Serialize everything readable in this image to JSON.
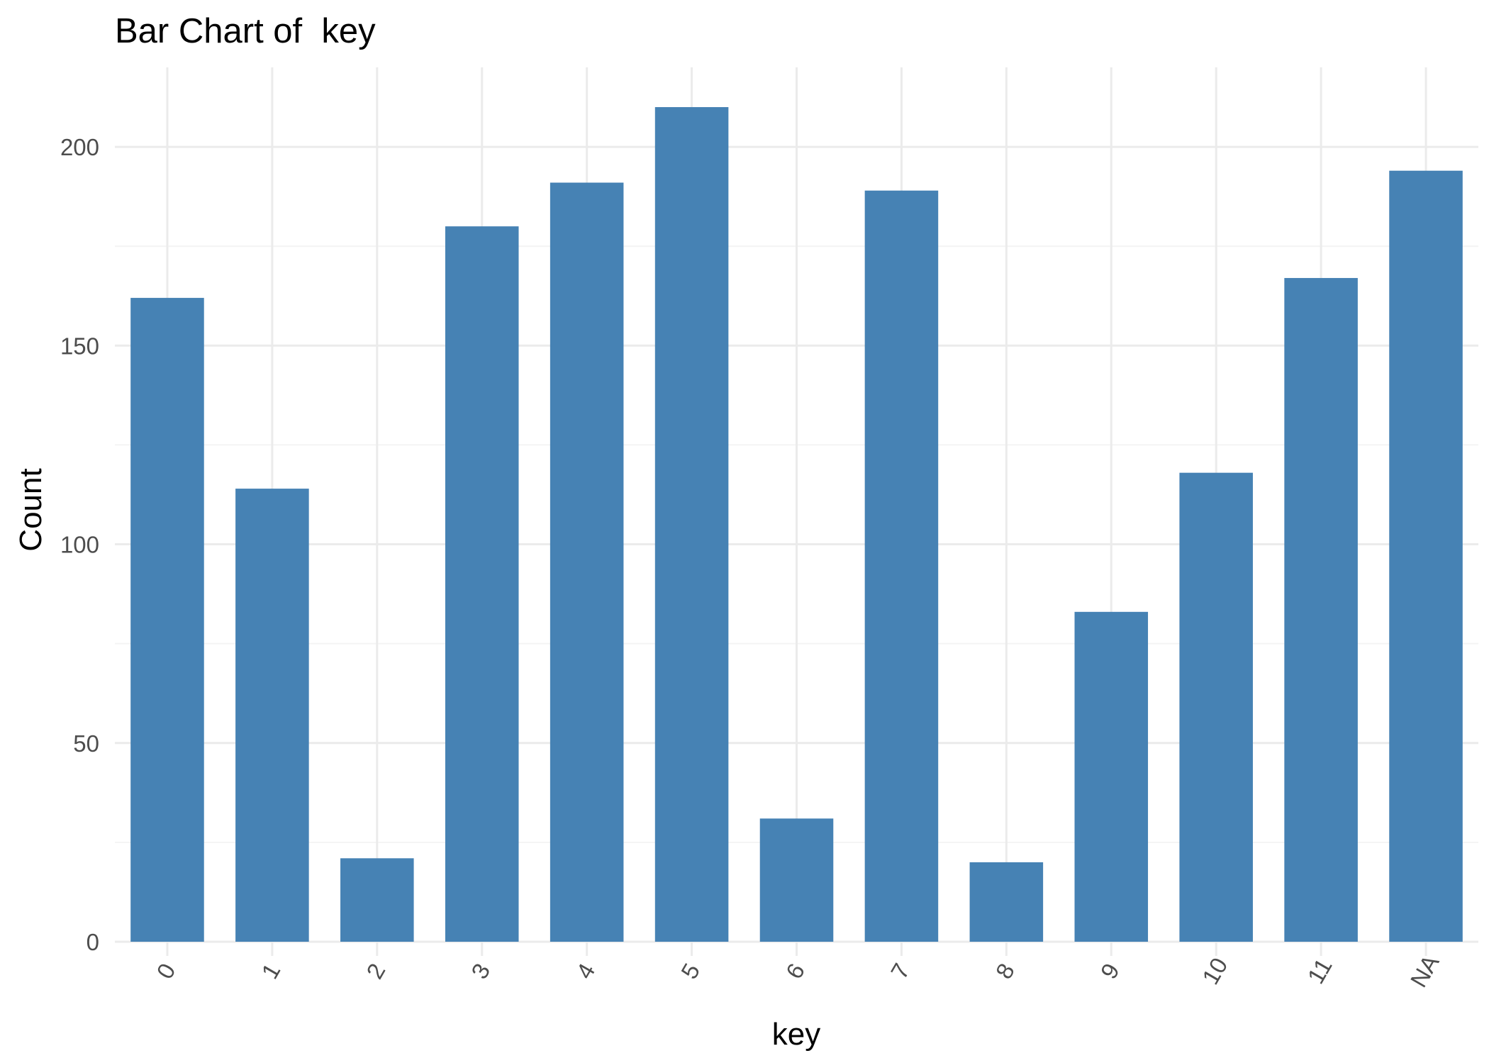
{
  "chart_data": {
    "type": "bar",
    "title": "Bar Chart of  key",
    "xlabel": "key",
    "ylabel": "Count",
    "categories": [
      "0",
      "1",
      "2",
      "3",
      "4",
      "5",
      "6",
      "7",
      "8",
      "9",
      "10",
      "11",
      "NA"
    ],
    "values": [
      162,
      114,
      21,
      180,
      191,
      210,
      31,
      189,
      20,
      83,
      118,
      167,
      194
    ],
    "ylim": [
      0,
      220
    ],
    "yticks": [
      0,
      50,
      100,
      150,
      200
    ],
    "grid": true,
    "legend": "none",
    "colors": {
      "bar": "#4682B4",
      "grid_major": "#ebebeb",
      "grid_minor": "#f4f4f4",
      "tick_text": "#4d4d4d"
    }
  }
}
